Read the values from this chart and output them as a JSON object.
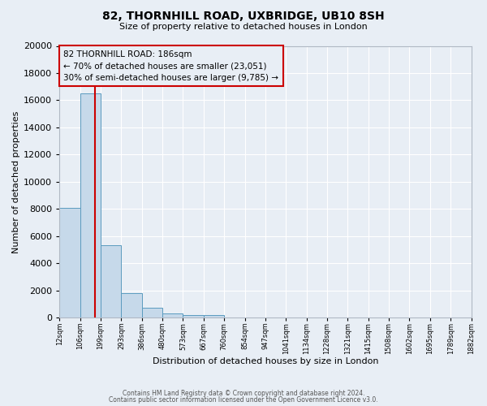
{
  "title": "82, THORNHILL ROAD, UXBRIDGE, UB10 8SH",
  "subtitle": "Size of property relative to detached houses in London",
  "xlabel": "Distribution of detached houses by size in London",
  "ylabel": "Number of detached properties",
  "bin_labels": [
    "12sqm",
    "106sqm",
    "199sqm",
    "293sqm",
    "386sqm",
    "480sqm",
    "573sqm",
    "667sqm",
    "760sqm",
    "854sqm",
    "947sqm",
    "1041sqm",
    "1134sqm",
    "1228sqm",
    "1321sqm",
    "1415sqm",
    "1508sqm",
    "1602sqm",
    "1695sqm",
    "1789sqm",
    "1882sqm"
  ],
  "n_bins": 20,
  "bar_values": [
    8100,
    16500,
    5300,
    1800,
    750,
    300,
    200,
    200,
    0,
    0,
    0,
    0,
    0,
    0,
    0,
    0,
    0,
    0,
    0,
    0
  ],
  "bar_color": "#c6d9ea",
  "bar_edgecolor": "#5b9bbf",
  "property_bin": 1.72,
  "red_line_color": "#cc0000",
  "annotation_line1": "82 THORNHILL ROAD: 186sqm",
  "annotation_line2": "← 70% of detached houses are smaller (23,051)",
  "annotation_line3": "30% of semi-detached houses are larger (9,785) →",
  "annotation_box_edgecolor": "#cc0000",
  "ylim": [
    0,
    20000
  ],
  "yticks": [
    0,
    2000,
    4000,
    6000,
    8000,
    10000,
    12000,
    14000,
    16000,
    18000,
    20000
  ],
  "bg_color": "#e8eef5",
  "grid_color": "#ffffff",
  "footer_line1": "Contains HM Land Registry data © Crown copyright and database right 2024.",
  "footer_line2": "Contains public sector information licensed under the Open Government Licence v3.0."
}
